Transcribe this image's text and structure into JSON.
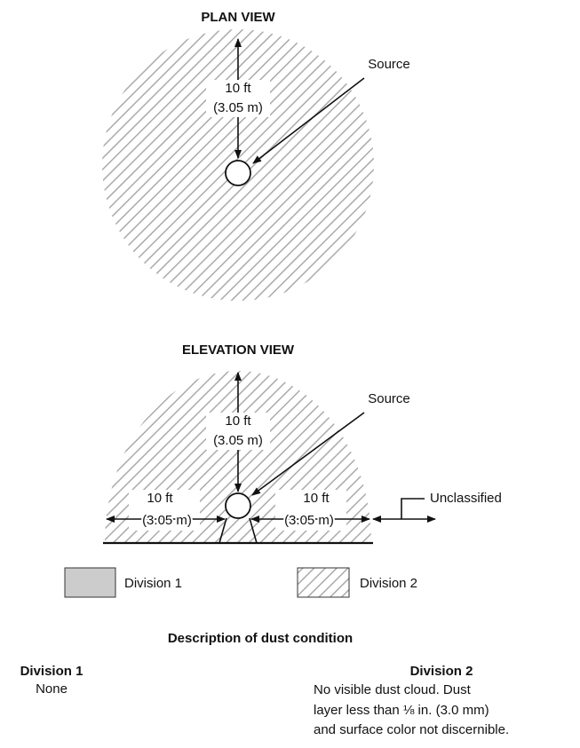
{
  "plan_view": {
    "title": "PLAN VIEW",
    "distance": "10 ft",
    "distance_metric": "(3.05 m)",
    "source": "Source"
  },
  "elevation_view": {
    "title": "ELEVATION VIEW",
    "distance_up": "10 ft",
    "distance_up_metric": "(3.05 m)",
    "source": "Source",
    "distance_left": "10 ft",
    "distance_left_metric": "(3.05 m)",
    "distance_right": "10 ft",
    "distance_right_metric": "(3.05 m)",
    "unclassified": "Unclassified"
  },
  "legend": [
    "Division 1",
    "Division 2"
  ],
  "description": {
    "title": "Description of dust condition",
    "division_1": {
      "heading": "Division 1",
      "text": "None"
    },
    "division_2": {
      "heading": "Division 2",
      "lines": [
        "No visible dust cloud. Dust",
        "layer less than ⅛ in. (3.0 mm)",
        "and surface color not discernible."
      ]
    }
  }
}
